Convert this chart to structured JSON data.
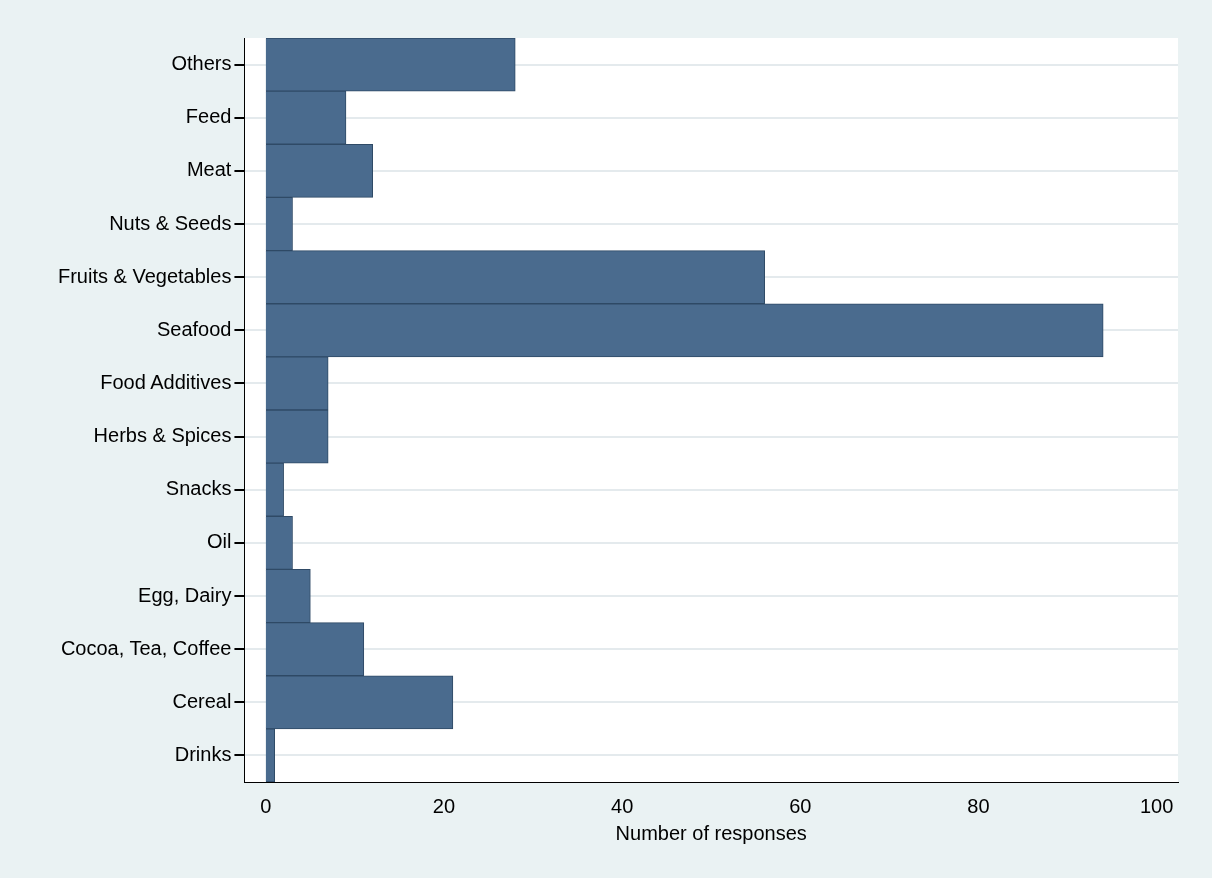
{
  "chart_data": {
    "type": "bar",
    "orientation": "horizontal",
    "xlabel": "Number of responses",
    "categories": [
      "Others",
      "Feed",
      "Meat",
      "Nuts & Seeds",
      "Fruits & Vegetables",
      "Seafood",
      "Food Additives",
      "Herbs & Spices",
      "Snacks",
      "Oil",
      "Egg, Dairy",
      "Cocoa, Tea, Coffee",
      "Cereal",
      "Drinks"
    ],
    "values": [
      28,
      9,
      12,
      3,
      56,
      94,
      7,
      7,
      2,
      3,
      5,
      11,
      21,
      1
    ],
    "color": "#4a6b8e",
    "xlim": [
      -2.4,
      102.4
    ],
    "xticks": [
      0,
      20,
      40,
      60,
      80,
      100
    ],
    "grid": "y",
    "legend": false
  }
}
